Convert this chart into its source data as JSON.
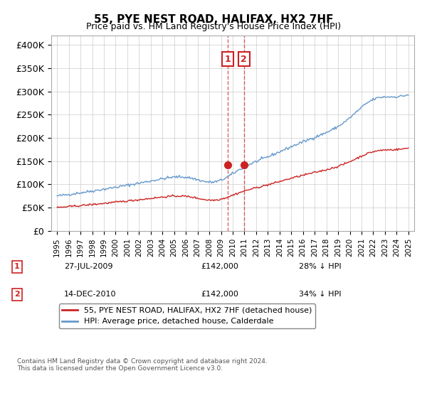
{
  "title": "55, PYE NEST ROAD, HALIFAX, HX2 7HF",
  "subtitle": "Price paid vs. HM Land Registry's House Price Index (HPI)",
  "xlabel": "",
  "ylabel": "",
  "ylim": [
    0,
    420000
  ],
  "yticks": [
    0,
    50000,
    100000,
    150000,
    200000,
    250000,
    300000,
    350000,
    400000
  ],
  "ytick_labels": [
    "£0",
    "£50K",
    "£100K",
    "£150K",
    "£200K",
    "£250K",
    "£300K",
    "£350K",
    "£400K"
  ],
  "hpi_color": "#6699cc",
  "price_color": "#cc2222",
  "transaction1_date": 2009.57,
  "transaction2_date": 2010.95,
  "transaction1_price": 142000,
  "transaction2_price": 142000,
  "legend_label_price": "55, PYE NEST ROAD, HALIFAX, HX2 7HF (detached house)",
  "legend_label_hpi": "HPI: Average price, detached house, Calderdale",
  "annotation1_num": "1",
  "annotation2_num": "2",
  "annotation1_date_str": "27-JUL-2009",
  "annotation2_date_str": "14-DEC-2010",
  "annotation1_price_str": "£142,000",
  "annotation2_price_str": "£142,000",
  "annotation1_hpi_str": "28% ↓ HPI",
  "annotation2_hpi_str": "34% ↓ HPI",
  "footnote": "Contains HM Land Registry data © Crown copyright and database right 2024.\nThis data is licensed under the Open Government Licence v3.0.",
  "background_color": "#ffffff",
  "grid_color": "#cccccc"
}
